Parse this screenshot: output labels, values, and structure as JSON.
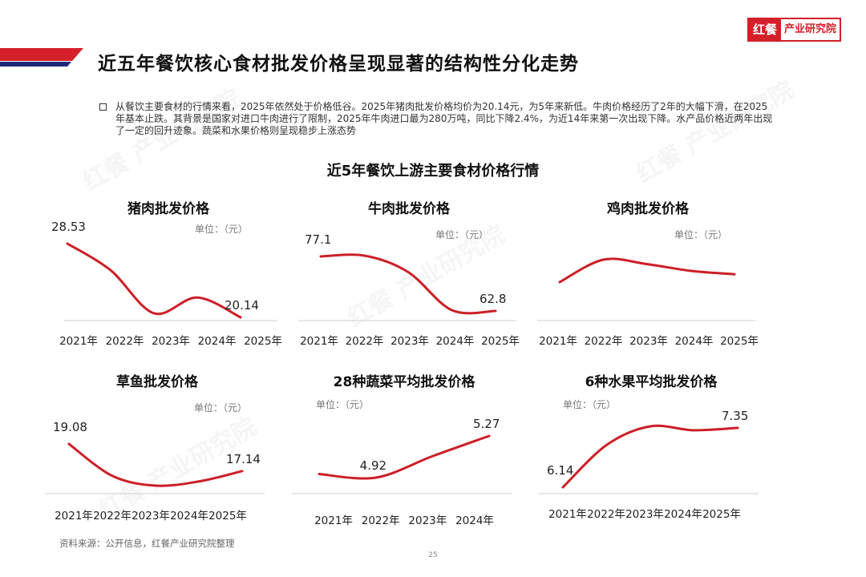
{
  "brand": {
    "logo_mark": "红餐",
    "logo_text": "产业研究院",
    "accent": "#d4202a",
    "band_blue": "#1f2a78"
  },
  "page_title": "近五年餐饮核心食材批发价格呈现显著的结构性分化走势",
  "summary": "从餐饮主要食材的行情来看，2025年依然处于价格低谷。2025年猪肉批发价格均价为20.14元，为5年来新低。牛肉价格经历了2年的大幅下滑，在2025年基本止跌。其背景是国家对进口牛肉进行了限制，2025年牛肉进口最为280万吨，同比下降2.4%，为近14年来第一次出现下降。水产品价格近两年出现了一定的回升迹象。蔬菜和水果价格则呈现稳步上涨态势",
  "chart_title": "近5年餐饮上游主要食材价格行情",
  "source": "资料来源：公开信息，红餐产业研究院整理",
  "page_number": "25",
  "watermark": "红餐 产业研究院",
  "chart_data": [
    {
      "type": "line",
      "title": "猪肉批发价格",
      "unit": "单位：（元）",
      "categories": [
        "2021年",
        "2022年",
        "2023年",
        "2024年",
        "2025年"
      ],
      "values": [
        28.53,
        25.5,
        20.6,
        22.4,
        20.14
      ],
      "labels": [
        {
          "index": 0,
          "text": "28.53"
        },
        {
          "index": 4,
          "text": "20.14"
        }
      ],
      "color": "#cc1f27"
    },
    {
      "type": "line",
      "title": "牛肉批发价格",
      "unit": "单位：（元）",
      "categories": [
        "2021年",
        "2022年",
        "2023年",
        "2024年",
        "2025年"
      ],
      "values": [
        77.1,
        77.3,
        73.0,
        63.0,
        62.8
      ],
      "labels": [
        {
          "index": 0,
          "text": "77.1"
        },
        {
          "index": 4,
          "text": "62.8"
        }
      ],
      "color": "#cc1f27"
    },
    {
      "type": "line",
      "title": "鸡肉批发价格",
      "unit": "单位：（元）",
      "categories": [
        "2021年",
        "2022年",
        "2023年",
        "2024年",
        "2025年"
      ],
      "values": [
        22.0,
        24.0,
        23.6,
        23.0,
        22.7
      ],
      "labels": [],
      "color": "#cc1f27"
    },
    {
      "type": "line",
      "title": "草鱼批发价格",
      "unit": "单位：（元）",
      "categories": [
        "2021年",
        "2022年",
        "2023年",
        "2024年",
        "2025年"
      ],
      "values": [
        19.08,
        16.8,
        16.1,
        16.4,
        17.14
      ],
      "labels": [
        {
          "index": 0,
          "text": "19.08"
        },
        {
          "index": 4,
          "text": "17.14"
        }
      ],
      "color": "#cc1f27"
    },
    {
      "type": "line",
      "title": "28种蔬菜平均批发价格",
      "unit": "单位：（元）",
      "categories": [
        "2021年",
        "2022年",
        "2023年",
        "2024年"
      ],
      "values": [
        4.95,
        4.92,
        5.1,
        5.27
      ],
      "labels": [
        {
          "index": 1,
          "text": "4.92"
        },
        {
          "index": 3,
          "text": "5.27"
        }
      ],
      "color": "#cc1f27"
    },
    {
      "type": "line",
      "title": "6种水果平均批发价格",
      "unit": "单位：（元）",
      "categories": [
        "2021年",
        "2022年",
        "2023年",
        "2024年",
        "2025年"
      ],
      "values": [
        6.14,
        7.0,
        7.38,
        7.3,
        7.35
      ],
      "labels": [
        {
          "index": 0,
          "text": "6.14"
        },
        {
          "index": 4,
          "text": "7.35"
        }
      ],
      "color": "#cc1f27"
    }
  ]
}
